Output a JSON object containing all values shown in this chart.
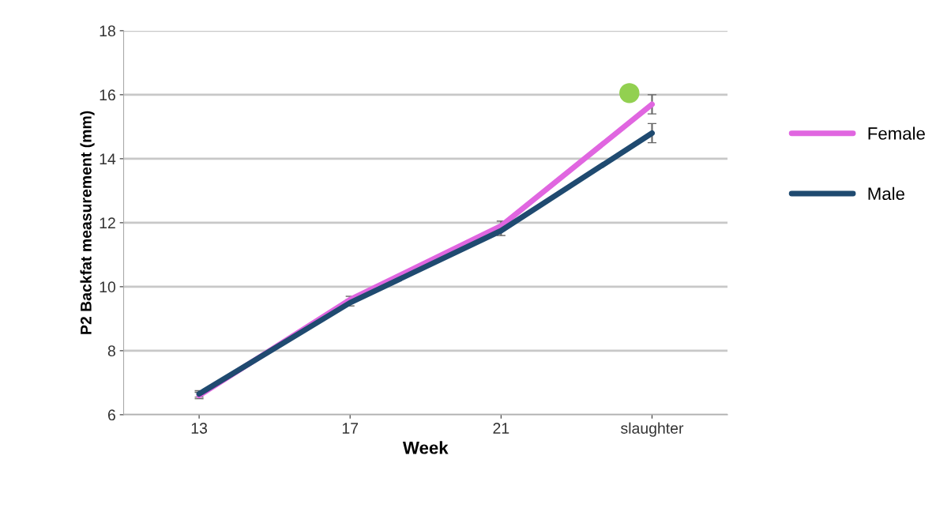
{
  "chart_data": {
    "type": "line",
    "xlabel": "Week",
    "ylabel": "P2 Backfat measurement (mm)",
    "categories": [
      "13",
      "17",
      "21",
      "slaughter"
    ],
    "series": [
      {
        "name": "Female",
        "color": "#e066e0",
        "values": [
          6.6,
          9.6,
          11.9,
          15.7
        ],
        "errors": [
          0.1,
          0.1,
          0.15,
          0.3
        ]
      },
      {
        "name": "Male",
        "color": "#1f4a70",
        "values": [
          6.65,
          9.5,
          11.75,
          14.8
        ],
        "errors": [
          0.1,
          0.1,
          0.15,
          0.3
        ]
      },
      {
        "type": "scatter",
        "color": "#92d050",
        "x": [
          "slaughter"
        ],
        "values": [
          16.05
        ],
        "marker": "circle"
      }
    ],
    "ylim": [
      6,
      18
    ],
    "yticks": [
      6,
      8,
      10,
      12,
      14,
      16,
      18
    ],
    "grid": "y",
    "legend": "right",
    "marker": "none"
  }
}
